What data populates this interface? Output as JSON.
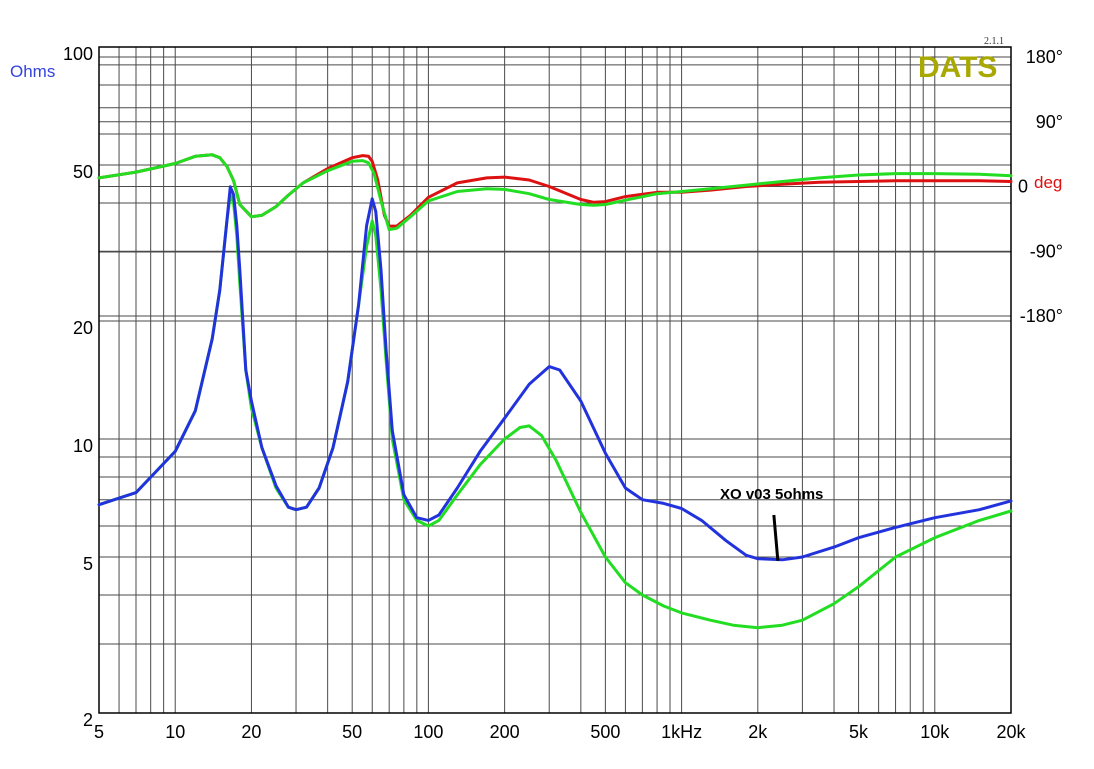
{
  "chart_data": {
    "type": "line",
    "x_scale": "log",
    "y_scale": "log",
    "xlim": [
      5,
      20000
    ],
    "ylim": [
      2,
      100
    ],
    "y2lim": [
      -180,
      180
    ],
    "grid": true,
    "x_ticks": [
      {
        "value": 5,
        "label": "5"
      },
      {
        "value": 10,
        "label": "10"
      },
      {
        "value": 20,
        "label": "20"
      },
      {
        "value": 50,
        "label": "50"
      },
      {
        "value": 100,
        "label": "100"
      },
      {
        "value": 200,
        "label": "200"
      },
      {
        "value": 500,
        "label": "500"
      },
      {
        "value": 1000,
        "label": "1kHz"
      },
      {
        "value": 2000,
        "label": "2k"
      },
      {
        "value": 5000,
        "label": "5k"
      },
      {
        "value": 10000,
        "label": "10k"
      },
      {
        "value": 20000,
        "label": "20k"
      }
    ],
    "y_ticks": [
      {
        "value": 100,
        "label": "100"
      },
      {
        "value": 50,
        "label": "50"
      },
      {
        "value": 20,
        "label": "20"
      },
      {
        "value": 10,
        "label": "10"
      },
      {
        "value": 5,
        "label": "5"
      },
      {
        "value": 2,
        "label": "2"
      }
    ],
    "y2_ticks": [
      {
        "value": 180,
        "label": "180°"
      },
      {
        "value": 90,
        "label": "90°"
      },
      {
        "value": 0,
        "label": "0"
      },
      {
        "value": -90,
        "label": "-90°"
      },
      {
        "value": -180,
        "label": "-180°"
      }
    ],
    "ylabel": "Ohms",
    "y2label": "deg",
    "series": [
      {
        "axis": "y",
        "color": "#22dd22",
        "points": [
          [
            5,
            6.8
          ],
          [
            7,
            7.3
          ],
          [
            10,
            9.3
          ],
          [
            12,
            11.8
          ],
          [
            14,
            18
          ],
          [
            15,
            24
          ],
          [
            16,
            36
          ],
          [
            16.5,
            42
          ],
          [
            17,
            40
          ],
          [
            17.5,
            33
          ],
          [
            18,
            25
          ],
          [
            19,
            15
          ],
          [
            20,
            12
          ],
          [
            22,
            9.5
          ],
          [
            25,
            7.5
          ],
          [
            28,
            6.7
          ],
          [
            30,
            6.6
          ],
          [
            33,
            6.7
          ],
          [
            37,
            7.5
          ],
          [
            42,
            9.5
          ],
          [
            48,
            14
          ],
          [
            53,
            22
          ],
          [
            57,
            31
          ],
          [
            60,
            36
          ],
          [
            62,
            33
          ],
          [
            65,
            24
          ],
          [
            68,
            16
          ],
          [
            72,
            10
          ],
          [
            80,
            7
          ],
          [
            90,
            6.2
          ],
          [
            100,
            6.0
          ],
          [
            110,
            6.2
          ],
          [
            130,
            7.2
          ],
          [
            160,
            8.6
          ],
          [
            200,
            10.0
          ],
          [
            230,
            10.7
          ],
          [
            250,
            10.8
          ],
          [
            280,
            10.2
          ],
          [
            320,
            8.8
          ],
          [
            400,
            6.5
          ],
          [
            500,
            5.0
          ],
          [
            600,
            4.3
          ],
          [
            700,
            4.0
          ],
          [
            850,
            3.75
          ],
          [
            1000,
            3.6
          ],
          [
            1300,
            3.45
          ],
          [
            1600,
            3.35
          ],
          [
            2000,
            3.3
          ],
          [
            2500,
            3.35
          ],
          [
            3000,
            3.45
          ],
          [
            4000,
            3.8
          ],
          [
            5000,
            4.2
          ],
          [
            7000,
            5.0
          ],
          [
            10000,
            5.6
          ],
          [
            15000,
            6.2
          ],
          [
            20000,
            6.55
          ]
        ]
      },
      {
        "axis": "y",
        "color": "#2233dd",
        "points": [
          [
            5,
            6.8
          ],
          [
            7,
            7.3
          ],
          [
            10,
            9.3
          ],
          [
            12,
            11.8
          ],
          [
            14,
            18
          ],
          [
            15,
            24
          ],
          [
            16,
            36
          ],
          [
            16.5,
            44
          ],
          [
            17,
            42
          ],
          [
            17.5,
            35
          ],
          [
            18,
            27
          ],
          [
            19,
            15
          ],
          [
            20,
            12.5
          ],
          [
            22,
            9.5
          ],
          [
            25,
            7.6
          ],
          [
            28,
            6.7
          ],
          [
            30,
            6.6
          ],
          [
            33,
            6.7
          ],
          [
            37,
            7.5
          ],
          [
            42,
            9.5
          ],
          [
            48,
            14
          ],
          [
            53,
            22
          ],
          [
            57,
            35
          ],
          [
            60,
            41
          ],
          [
            62,
            38
          ],
          [
            65,
            27
          ],
          [
            68,
            17
          ],
          [
            72,
            10.5
          ],
          [
            80,
            7.2
          ],
          [
            90,
            6.3
          ],
          [
            100,
            6.2
          ],
          [
            110,
            6.4
          ],
          [
            130,
            7.5
          ],
          [
            160,
            9.3
          ],
          [
            200,
            11.3
          ],
          [
            250,
            13.8
          ],
          [
            300,
            15.3
          ],
          [
            330,
            15.0
          ],
          [
            400,
            12.5
          ],
          [
            500,
            9.2
          ],
          [
            600,
            7.5
          ],
          [
            700,
            7.0
          ],
          [
            850,
            6.85
          ],
          [
            1000,
            6.65
          ],
          [
            1200,
            6.2
          ],
          [
            1500,
            5.5
          ],
          [
            1800,
            5.05
          ],
          [
            2000,
            4.95
          ],
          [
            2500,
            4.92
          ],
          [
            3000,
            5.0
          ],
          [
            4000,
            5.3
          ],
          [
            5000,
            5.6
          ],
          [
            7000,
            5.95
          ],
          [
            10000,
            6.3
          ],
          [
            15000,
            6.6
          ],
          [
            20000,
            6.95
          ]
        ]
      },
      {
        "axis": "y2",
        "color": "#dd1111",
        "points": [
          [
            5,
            12
          ],
          [
            7,
            20
          ],
          [
            10,
            32
          ],
          [
            12,
            42
          ],
          [
            14,
            44
          ],
          [
            15,
            40
          ],
          [
            16,
            28
          ],
          [
            17,
            8
          ],
          [
            18,
            -25
          ],
          [
            20,
            -42
          ],
          [
            22,
            -40
          ],
          [
            25,
            -28
          ],
          [
            28,
            -12
          ],
          [
            32,
            5
          ],
          [
            40,
            25
          ],
          [
            50,
            40
          ],
          [
            55,
            43
          ],
          [
            58,
            42
          ],
          [
            60,
            35
          ],
          [
            63,
            10
          ],
          [
            67,
            -40
          ],
          [
            70,
            -55
          ],
          [
            75,
            -55
          ],
          [
            85,
            -40
          ],
          [
            100,
            -15
          ],
          [
            130,
            5
          ],
          [
            170,
            12
          ],
          [
            200,
            13
          ],
          [
            250,
            9
          ],
          [
            300,
            0
          ],
          [
            400,
            -18
          ],
          [
            450,
            -22
          ],
          [
            500,
            -21
          ],
          [
            600,
            -14
          ],
          [
            800,
            -8
          ],
          [
            1000,
            -8
          ],
          [
            1300,
            -5
          ],
          [
            1800,
            0
          ],
          [
            2500,
            3
          ],
          [
            3500,
            6
          ],
          [
            5000,
            7
          ],
          [
            7000,
            8
          ],
          [
            10000,
            8
          ],
          [
            15000,
            8
          ],
          [
            20000,
            7
          ]
        ]
      },
      {
        "axis": "y2",
        "color": "#22dd22",
        "points": [
          [
            5,
            12
          ],
          [
            7,
            20
          ],
          [
            10,
            32
          ],
          [
            12,
            42
          ],
          [
            14,
            44
          ],
          [
            15,
            40
          ],
          [
            16,
            28
          ],
          [
            17,
            8
          ],
          [
            18,
            -25
          ],
          [
            20,
            -42
          ],
          [
            22,
            -40
          ],
          [
            25,
            -28
          ],
          [
            28,
            -12
          ],
          [
            32,
            5
          ],
          [
            40,
            22
          ],
          [
            50,
            35
          ],
          [
            55,
            36
          ],
          [
            58,
            33
          ],
          [
            61,
            18
          ],
          [
            65,
            -20
          ],
          [
            70,
            -60
          ],
          [
            75,
            -58
          ],
          [
            85,
            -42
          ],
          [
            100,
            -20
          ],
          [
            130,
            -7
          ],
          [
            170,
            -3
          ],
          [
            200,
            -4
          ],
          [
            250,
            -10
          ],
          [
            300,
            -18
          ],
          [
            400,
            -25
          ],
          [
            450,
            -26
          ],
          [
            500,
            -25
          ],
          [
            600,
            -19
          ],
          [
            800,
            -10
          ],
          [
            1000,
            -7
          ],
          [
            1300,
            -3
          ],
          [
            1800,
            2
          ],
          [
            2500,
            7
          ],
          [
            3500,
            12
          ],
          [
            5000,
            16
          ],
          [
            7000,
            18
          ],
          [
            10000,
            18
          ],
          [
            15000,
            17
          ],
          [
            20000,
            15
          ]
        ]
      }
    ],
    "annotation": {
      "text": "XO v03 5ohms",
      "x": 2400,
      "y": 4.95
    }
  },
  "branding": {
    "logo": "DATS",
    "version": "2.1.1",
    "logo_color": "#a8a800"
  }
}
